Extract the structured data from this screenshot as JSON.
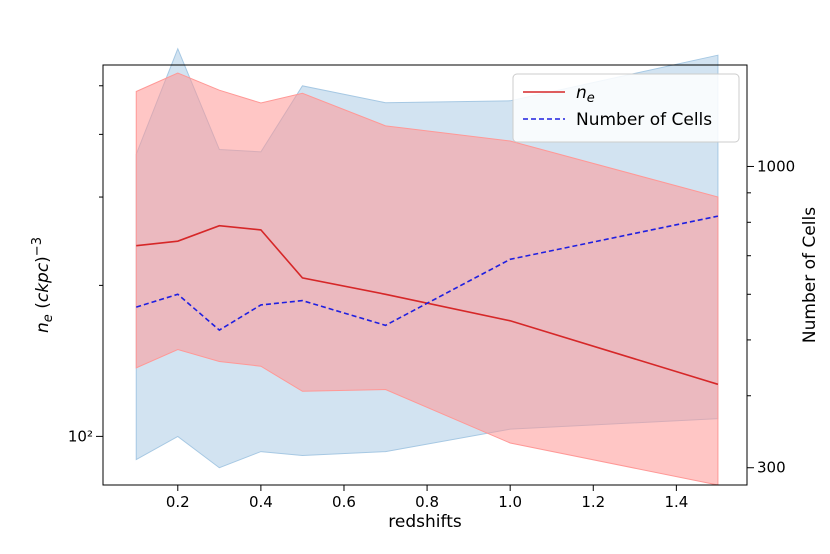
{
  "chart_data": {
    "type": "line",
    "x": [
      0.1,
      0.2,
      0.3,
      0.4,
      0.5,
      0.7,
      1.0,
      1.5
    ],
    "xlabel": "redshifts",
    "ylabel_left": "n_e (ckpc)^-3",
    "ylabel_right": "Number of Cells",
    "xlim": [
      0.02,
      1.57
    ],
    "x_ticks": [
      0.2,
      0.4,
      0.6,
      0.8,
      1.0,
      1.2,
      1.4
    ],
    "x_tick_labels": [
      "0.2",
      "0.4",
      "0.6",
      "0.8",
      "1.0",
      "1.2",
      "1.4"
    ],
    "left_axis": {
      "scale": "log",
      "ylim": [
        80,
        550
      ],
      "major_ticks": [
        100
      ],
      "major_tick_labels": [
        "10²"
      ],
      "minor_ticks": [
        200,
        300,
        400,
        500
      ]
    },
    "right_axis": {
      "scale": "log",
      "ylim": [
        280,
        1500
      ],
      "major_ticks": [
        300,
        1000
      ],
      "major_tick_labels": [
        "300",
        "1000"
      ],
      "minor_ticks": [
        400,
        500,
        600,
        700,
        800,
        900
      ]
    },
    "series": [
      {
        "name": "n_e",
        "axis": "left",
        "color": "#d62728",
        "style": "solid",
        "fill_color": "#ff9896",
        "values": [
          240,
          245,
          263,
          258,
          207,
          192,
          170,
          127
        ],
        "band_upper": [
          487,
          530,
          490,
          462,
          483,
          416,
          388,
          300
        ],
        "band_lower": [
          137,
          149,
          141,
          138,
          123,
          124,
          97,
          80
        ]
      },
      {
        "name": "Number of Cells",
        "axis": "right",
        "color": "#1f1fe0",
        "style": "dashed",
        "fill_color": "#a6c8e3",
        "values": [
          570,
          600,
          520,
          575,
          585,
          530,
          690,
          820
        ],
        "band_upper": [
          1050,
          1600,
          1070,
          1060,
          1380,
          1290,
          1300,
          1560
        ],
        "band_lower": [
          310,
          340,
          300,
          320,
          315,
          320,
          350,
          365
        ]
      }
    ],
    "legend": {
      "position": "upper right",
      "entries": [
        {
          "label": "n_e",
          "color": "#d62728",
          "style": "solid"
        },
        {
          "label": "Number of Cells",
          "color": "#1f1fe0",
          "style": "dashed"
        }
      ]
    }
  }
}
